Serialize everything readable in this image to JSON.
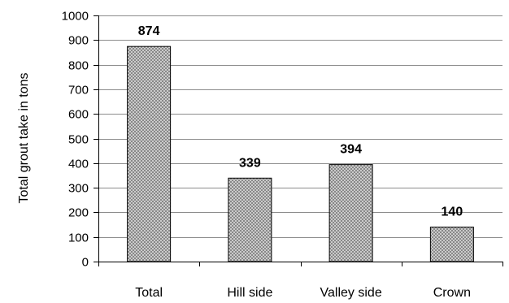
{
  "chart_data": {
    "type": "bar",
    "title": "",
    "xlabel": "",
    "ylabel": "Total grout take in tons",
    "categories": [
      "Total",
      "Hill side",
      "Valley side",
      "Crown"
    ],
    "values": [
      874,
      339,
      394,
      140
    ],
    "data_labels": [
      "874",
      "339",
      "394",
      "140"
    ],
    "ylim": [
      0,
      1000
    ],
    "yticks": [
      0,
      100,
      200,
      300,
      400,
      500,
      600,
      700,
      800,
      900,
      1000
    ],
    "grid": true,
    "legend": "none",
    "bar_fill": "crosshatch",
    "colors": {
      "bar_base": "#d8d8d8",
      "bar_hatch": "#6e6e6e",
      "bar_edge": "#000000",
      "grid": "#8c8c8c",
      "axis": "#000000"
    }
  }
}
